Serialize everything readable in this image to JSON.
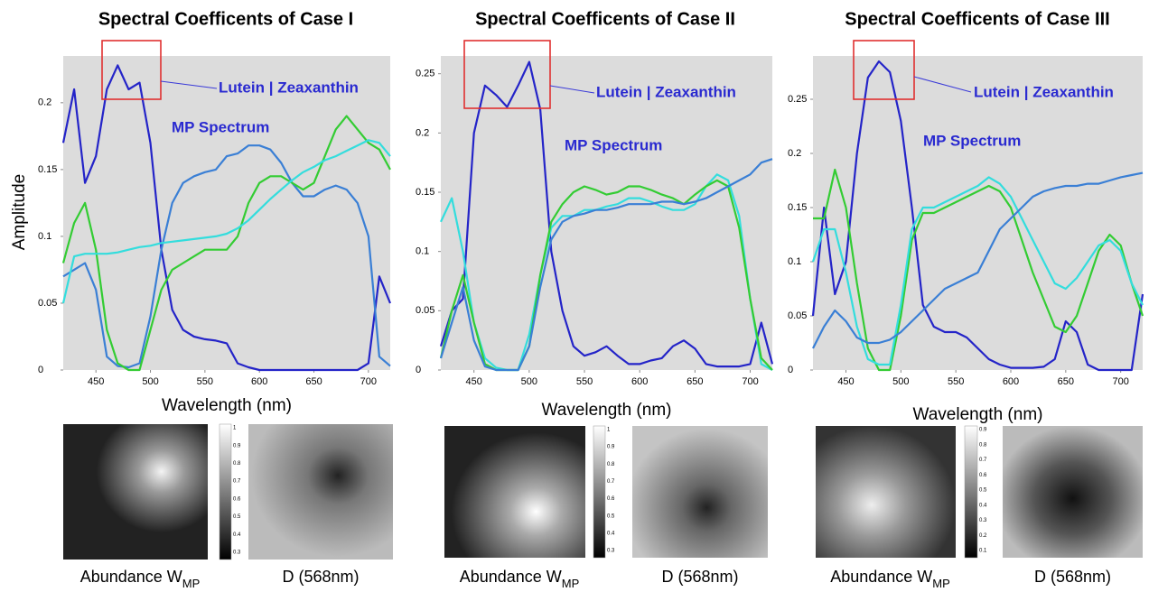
{
  "chart_data": [
    {
      "type": "line",
      "title": "Spectral Coefficents of Case I",
      "x_label": "Wavelength (nm)",
      "y_label": "Amplitude",
      "annotations": [
        "Lutein | Zeaxanthin",
        "MP Spectrum"
      ],
      "x": [
        420,
        430,
        440,
        450,
        460,
        470,
        480,
        490,
        500,
        510,
        520,
        530,
        540,
        550,
        560,
        570,
        580,
        590,
        600,
        610,
        620,
        630,
        640,
        650,
        660,
        670,
        680,
        690,
        700,
        710,
        720
      ],
      "series": [
        {
          "color": "#2424c8",
          "values": [
            0.17,
            0.21,
            0.14,
            0.16,
            0.21,
            0.228,
            0.21,
            0.215,
            0.17,
            0.09,
            0.045,
            0.03,
            0.025,
            0.023,
            0.022,
            0.02,
            0.005,
            0.002,
            0,
            0,
            0,
            0,
            0,
            0,
            0,
            0,
            0,
            0,
            0.005,
            0.07,
            0.05
          ]
        },
        {
          "color": "#3a7fd5",
          "values": [
            0.07,
            0.075,
            0.08,
            0.06,
            0.01,
            0.003,
            0.002,
            0.005,
            0.04,
            0.09,
            0.125,
            0.14,
            0.145,
            0.148,
            0.15,
            0.16,
            0.162,
            0.168,
            0.168,
            0.165,
            0.155,
            0.14,
            0.13,
            0.13,
            0.135,
            0.138,
            0.135,
            0.125,
            0.1,
            0.01,
            0.003
          ]
        },
        {
          "color": "#33cc33",
          "values": [
            0.08,
            0.11,
            0.125,
            0.09,
            0.03,
            0.005,
            0,
            0,
            0.03,
            0.06,
            0.075,
            0.08,
            0.085,
            0.09,
            0.09,
            0.09,
            0.1,
            0.125,
            0.14,
            0.145,
            0.145,
            0.14,
            0.135,
            0.14,
            0.16,
            0.18,
            0.19,
            0.18,
            0.17,
            0.165,
            0.15
          ]
        },
        {
          "color": "#33dddd",
          "values": [
            0.05,
            0.085,
            0.087,
            0.087,
            0.087,
            0.088,
            0.09,
            0.092,
            0.093,
            0.095,
            0.096,
            0.097,
            0.098,
            0.099,
            0.1,
            0.102,
            0.106,
            0.112,
            0.12,
            0.128,
            0.135,
            0.142,
            0.148,
            0.152,
            0.157,
            0.16,
            0.164,
            0.168,
            0.172,
            0.17,
            0.16
          ]
        }
      ],
      "xlim": [
        420,
        720
      ],
      "xticks": [
        450,
        500,
        550,
        600,
        650,
        700
      ],
      "ylim": [
        0,
        0.235
      ],
      "yticks": [
        0,
        0.05,
        0.1,
        0.15,
        0.2
      ],
      "abundance_label": "Abundance W",
      "abundance_subscript": "MP",
      "image_label": "D (568nm)",
      "colorbar_ticks": [
        1,
        0.9,
        0.8,
        0.7,
        0.6,
        0.5,
        0.4,
        0.3
      ]
    },
    {
      "type": "line",
      "title": "Spectral Coefficents of Case II",
      "x_label": "Wavelength (nm)",
      "annotations": [
        "Lutein | Zeaxanthin",
        "MP Spectrum"
      ],
      "x": [
        420,
        430,
        440,
        450,
        460,
        470,
        480,
        490,
        500,
        510,
        520,
        530,
        540,
        550,
        560,
        570,
        580,
        590,
        600,
        610,
        620,
        630,
        640,
        650,
        660,
        670,
        680,
        690,
        700,
        710,
        720
      ],
      "series": [
        {
          "color": "#2424c8",
          "values": [
            0.02,
            0.05,
            0.06,
            0.2,
            0.24,
            0.232,
            0.222,
            0.24,
            0.26,
            0.22,
            0.1,
            0.05,
            0.02,
            0.012,
            0.015,
            0.02,
            0.012,
            0.005,
            0.005,
            0.008,
            0.01,
            0.02,
            0.025,
            0.018,
            0.005,
            0.003,
            0.003,
            0.003,
            0.005,
            0.04,
            0.005
          ]
        },
        {
          "color": "#33dddd",
          "values": [
            0.125,
            0.145,
            0.1,
            0.04,
            0.01,
            0.002,
            0,
            0,
            0.03,
            0.08,
            0.12,
            0.13,
            0.13,
            0.135,
            0.135,
            0.138,
            0.14,
            0.145,
            0.145,
            0.142,
            0.138,
            0.135,
            0.135,
            0.14,
            0.155,
            0.165,
            0.16,
            0.13,
            0.06,
            0.005,
            0
          ]
        },
        {
          "color": "#33cc33",
          "values": [
            0.01,
            0.05,
            0.08,
            0.04,
            0.005,
            0,
            0,
            0,
            0.02,
            0.08,
            0.125,
            0.14,
            0.15,
            0.155,
            0.152,
            0.148,
            0.15,
            0.155,
            0.155,
            0.152,
            0.148,
            0.145,
            0.14,
            0.148,
            0.155,
            0.16,
            0.155,
            0.12,
            0.06,
            0.01,
            0
          ]
        },
        {
          "color": "#3a7fd5",
          "values": [
            0.01,
            0.04,
            0.07,
            0.025,
            0.003,
            0,
            0,
            0,
            0.02,
            0.07,
            0.11,
            0.125,
            0.13,
            0.132,
            0.135,
            0.135,
            0.137,
            0.14,
            0.14,
            0.14,
            0.142,
            0.142,
            0.14,
            0.142,
            0.145,
            0.15,
            0.155,
            0.16,
            0.165,
            0.175,
            0.178
          ]
        }
      ],
      "xlim": [
        420,
        720
      ],
      "xticks": [
        450,
        500,
        550,
        600,
        650,
        700
      ],
      "ylim": [
        0,
        0.265
      ],
      "yticks": [
        0,
        0.05,
        0.1,
        0.15,
        0.2,
        0.25
      ],
      "abundance_label": "Abundance W",
      "abundance_subscript": "MP",
      "image_label": "D (568nm)",
      "colorbar_ticks": [
        1,
        0.9,
        0.8,
        0.7,
        0.6,
        0.5,
        0.4,
        0.3
      ]
    },
    {
      "type": "line",
      "title": "Spectral Coefficents of Case III",
      "x_label": "Wavelength (nm)",
      "annotations": [
        "Lutein | Zeaxanthin",
        "MP Spectrum"
      ],
      "x": [
        420,
        430,
        440,
        450,
        460,
        470,
        480,
        490,
        500,
        510,
        520,
        530,
        540,
        550,
        560,
        570,
        580,
        590,
        600,
        610,
        620,
        630,
        640,
        650,
        660,
        670,
        680,
        690,
        700,
        710,
        720
      ],
      "series": [
        {
          "color": "#2424c8",
          "values": [
            0.05,
            0.15,
            0.07,
            0.1,
            0.2,
            0.27,
            0.285,
            0.275,
            0.23,
            0.15,
            0.06,
            0.04,
            0.035,
            0.035,
            0.03,
            0.02,
            0.01,
            0.005,
            0.002,
            0.002,
            0.002,
            0.003,
            0.01,
            0.045,
            0.035,
            0.005,
            0,
            0,
            0,
            0,
            0.07
          ]
        },
        {
          "color": "#33cc33",
          "values": [
            0.14,
            0.14,
            0.185,
            0.15,
            0.08,
            0.02,
            0,
            0,
            0.05,
            0.12,
            0.145,
            0.145,
            0.15,
            0.155,
            0.16,
            0.165,
            0.17,
            0.165,
            0.15,
            0.12,
            0.09,
            0.065,
            0.04,
            0.035,
            0.05,
            0.08,
            0.11,
            0.125,
            0.115,
            0.08,
            0.05
          ]
        },
        {
          "color": "#33dddd",
          "values": [
            0.1,
            0.13,
            0.13,
            0.09,
            0.04,
            0.01,
            0.005,
            0.005,
            0.06,
            0.13,
            0.15,
            0.15,
            0.155,
            0.16,
            0.165,
            0.17,
            0.178,
            0.172,
            0.16,
            0.14,
            0.12,
            0.1,
            0.08,
            0.075,
            0.085,
            0.1,
            0.115,
            0.12,
            0.11,
            0.08,
            0.06
          ]
        },
        {
          "color": "#3a7fd5",
          "values": [
            0.02,
            0.04,
            0.055,
            0.045,
            0.03,
            0.025,
            0.025,
            0.028,
            0.035,
            0.045,
            0.055,
            0.065,
            0.075,
            0.08,
            0.085,
            0.09,
            0.11,
            0.13,
            0.14,
            0.15,
            0.16,
            0.165,
            0.168,
            0.17,
            0.17,
            0.172,
            0.172,
            0.175,
            0.178,
            0.18,
            0.182
          ]
        }
      ],
      "xlim": [
        420,
        720
      ],
      "xticks": [
        450,
        500,
        550,
        600,
        650,
        700
      ],
      "ylim": [
        0,
        0.29
      ],
      "yticks": [
        0,
        0.05,
        0.1,
        0.15,
        0.2,
        0.25
      ],
      "abundance_label": "Abundance W",
      "abundance_subscript": "MP",
      "image_label": "D (568nm)",
      "colorbar_ticks": [
        0.9,
        0.8,
        0.7,
        0.6,
        0.5,
        0.4,
        0.3,
        0.2,
        0.1
      ]
    }
  ]
}
